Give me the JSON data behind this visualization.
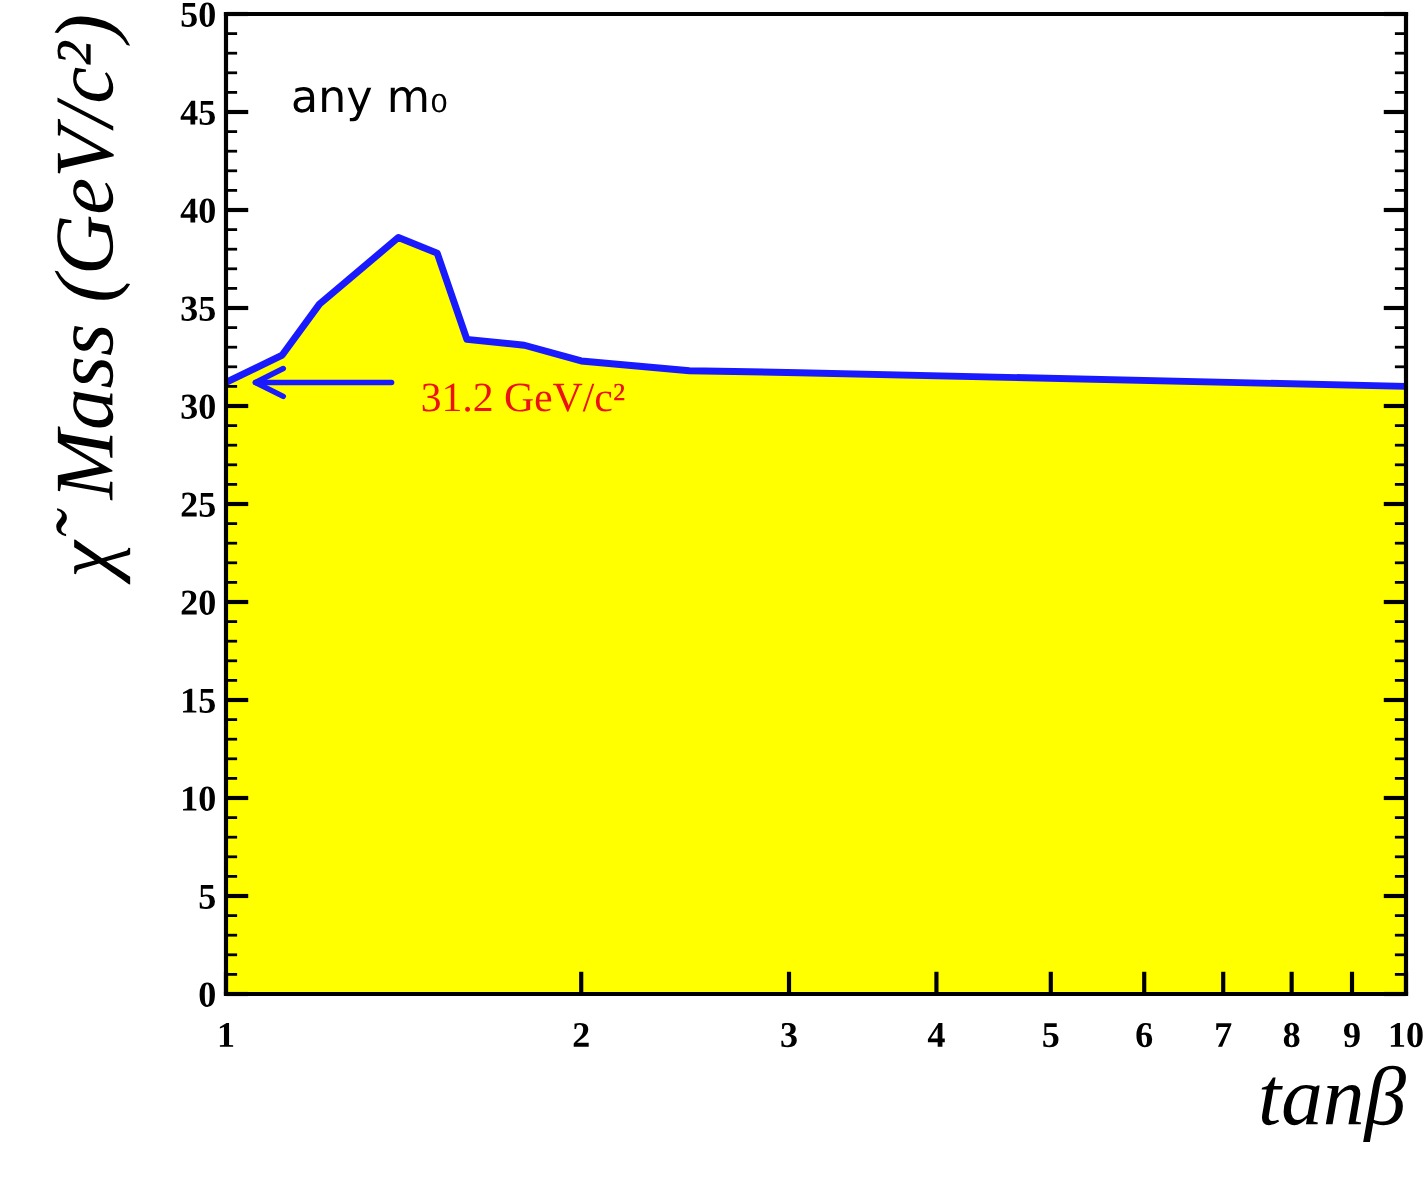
{
  "chart_data": {
    "type": "area",
    "xlabel": "tanβ",
    "ylabel": "χ̃  Mass (GeV/c²)",
    "x": [
      1,
      1.116,
      1.2,
      1.4,
      1.51,
      1.6,
      1.79,
      2.0,
      2.47,
      3.06,
      10
    ],
    "series": [
      {
        "color": "#ffff00",
        "values": [
          31.2,
          32.6,
          35.2,
          38.6,
          37.8,
          33.4,
          33.1,
          32.3,
          31.8,
          31.7,
          31.0
        ]
      },
      {
        "type": "line",
        "color": "#1a1aff",
        "values": [
          31.2,
          32.6,
          35.2,
          38.6,
          37.8,
          33.4,
          33.1,
          32.3,
          31.8,
          31.7,
          31.0
        ]
      }
    ],
    "log": "x",
    "xlim": [
      1,
      10
    ],
    "ylim": [
      0,
      50
    ],
    "xticks": [
      1,
      2,
      3,
      4,
      5,
      6,
      7,
      8,
      9,
      10
    ],
    "yticks": [
      0,
      5,
      10,
      15,
      20,
      25,
      30,
      35,
      40,
      45,
      50
    ],
    "grid": false,
    "annotations": [
      "any m₀",
      "31.2 GeV/c²"
    ]
  }
}
